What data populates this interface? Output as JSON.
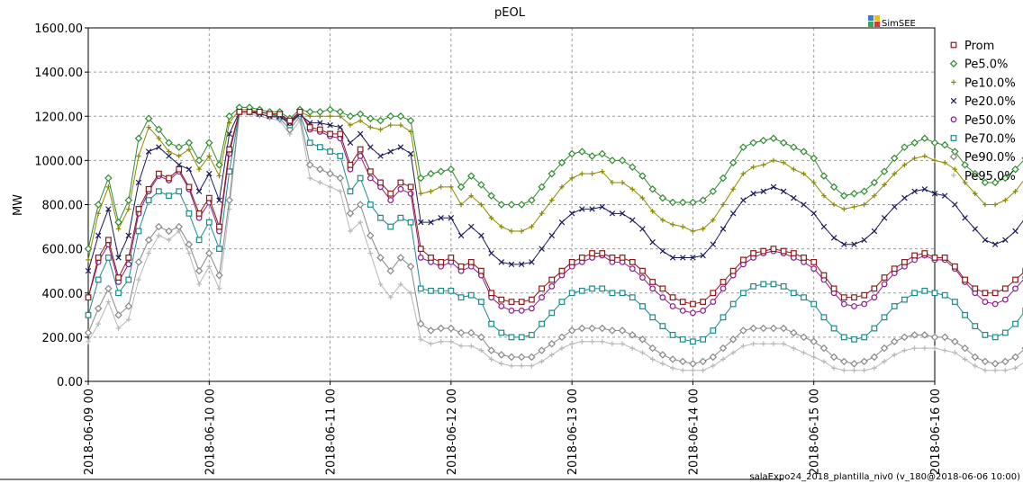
{
  "chart_data": {
    "type": "line",
    "title": "pEOL",
    "ylabel": "MW",
    "xlabel": "",
    "ylim": [
      0,
      1600
    ],
    "yticks": [
      "0.00",
      "200.00",
      "400.00",
      "600.00",
      "800.00",
      "1000.00",
      "1200.00",
      "1400.00",
      "1600.00"
    ],
    "xticks": [
      "2018-06-09 00",
      "2018-06-10 00",
      "2018-06-11 00",
      "2018-06-12 00",
      "2018-06-13 00",
      "2018-06-14 00",
      "2018-06-15 00",
      "2018-06-16 00"
    ],
    "x_start": "2018-06-09 00",
    "step_hours": 2,
    "grid": true,
    "legend_position": "right",
    "logo": "SimSEE",
    "footer": "salaExpo24_2018_plantilla_niv0 (v_180@2018-06-06 10:00)",
    "series": [
      {
        "name": "Prom",
        "color": "#8b1a1a",
        "marker": "square-open",
        "values": [
          380,
          560,
          640,
          470,
          560,
          780,
          870,
          940,
          920,
          960,
          880,
          760,
          830,
          700,
          1050,
          1220,
          1220,
          1220,
          1210,
          1210,
          1180,
          1220,
          1150,
          1140,
          1120,
          1120,
          980,
          1050,
          950,
          900,
          850,
          900,
          880,
          600,
          560,
          540,
          560,
          520,
          540,
          500,
          400,
          370,
          360,
          360,
          370,
          420,
          460,
          500,
          540,
          560,
          580,
          580,
          560,
          560,
          540,
          500,
          450,
          420,
          380,
          360,
          350,
          360,
          400,
          450,
          500,
          550,
          580,
          590,
          600,
          590,
          580,
          560,
          540,
          480,
          420,
          380,
          380,
          390,
          420,
          470,
          510,
          540,
          570,
          580,
          560,
          560,
          520,
          460,
          420,
          400,
          400,
          420,
          460,
          500,
          560,
          600
        ]
      },
      {
        "name": "Pe5.0%",
        "color": "#2e8b2e",
        "marker": "diamond-open",
        "values": [
          600,
          800,
          920,
          720,
          820,
          1100,
          1190,
          1140,
          1080,
          1060,
          1080,
          1000,
          1080,
          980,
          1200,
          1240,
          1240,
          1230,
          1220,
          1220,
          1190,
          1230,
          1220,
          1220,
          1230,
          1220,
          1200,
          1210,
          1190,
          1180,
          1200,
          1200,
          1180,
          920,
          940,
          950,
          960,
          880,
          930,
          890,
          840,
          800,
          800,
          800,
          820,
          880,
          940,
          990,
          1030,
          1040,
          1020,
          1030,
          1000,
          1000,
          970,
          930,
          870,
          830,
          810,
          810,
          810,
          820,
          860,
          920,
          990,
          1060,
          1080,
          1090,
          1100,
          1080,
          1060,
          1040,
          1010,
          930,
          880,
          840,
          850,
          860,
          900,
          950,
          1010,
          1060,
          1080,
          1100,
          1080,
          1070,
          1040,
          980,
          940,
          900,
          900,
          920,
          960,
          1010,
          1080,
          1120
        ]
      },
      {
        "name": "Pe10.0%",
        "color": "#8b8b00",
        "marker": "plus",
        "values": [
          550,
          760,
          880,
          690,
          780,
          1020,
          1150,
          1100,
          1040,
          1020,
          1050,
          960,
          1020,
          930,
          1170,
          1230,
          1230,
          1220,
          1210,
          1210,
          1180,
          1220,
          1200,
          1200,
          1200,
          1200,
          1160,
          1180,
          1150,
          1140,
          1160,
          1160,
          1130,
          850,
          860,
          880,
          880,
          800,
          840,
          800,
          740,
          700,
          680,
          680,
          700,
          760,
          820,
          880,
          920,
          940,
          940,
          950,
          900,
          900,
          870,
          830,
          770,
          730,
          710,
          700,
          680,
          690,
          730,
          800,
          870,
          940,
          970,
          980,
          1000,
          990,
          960,
          940,
          900,
          840,
          800,
          780,
          790,
          800,
          840,
          890,
          940,
          980,
          1010,
          1020,
          1000,
          990,
          960,
          900,
          850,
          800,
          800,
          820,
          860,
          920,
          990,
          1040
        ]
      },
      {
        "name": "Pe20.0%",
        "color": "#1a1a5a",
        "marker": "x",
        "values": [
          500,
          660,
          780,
          560,
          660,
          900,
          1040,
          1060,
          1020,
          980,
          960,
          860,
          940,
          820,
          1120,
          1220,
          1220,
          1210,
          1200,
          1200,
          1170,
          1210,
          1170,
          1170,
          1160,
          1150,
          1080,
          1120,
          1060,
          1020,
          1040,
          1060,
          1030,
          720,
          720,
          740,
          740,
          660,
          700,
          660,
          580,
          540,
          530,
          530,
          540,
          600,
          660,
          720,
          760,
          780,
          780,
          790,
          760,
          760,
          730,
          690,
          630,
          590,
          560,
          560,
          560,
          570,
          620,
          690,
          760,
          820,
          850,
          860,
          880,
          860,
          830,
          800,
          760,
          700,
          650,
          620,
          620,
          640,
          680,
          740,
          790,
          830,
          860,
          870,
          850,
          840,
          800,
          740,
          690,
          640,
          620,
          640,
          680,
          740,
          820,
          900
        ]
      },
      {
        "name": "Pe50.0%",
        "color": "#8b1a8b",
        "marker": "circle-open",
        "values": [
          380,
          540,
          620,
          450,
          530,
          760,
          860,
          930,
          910,
          950,
          870,
          740,
          810,
          680,
          1030,
          1220,
          1220,
          1220,
          1210,
          1210,
          1170,
          1220,
          1140,
          1130,
          1110,
          1100,
          960,
          1020,
          920,
          880,
          820,
          870,
          850,
          560,
          540,
          520,
          540,
          500,
          520,
          480,
          380,
          340,
          320,
          320,
          330,
          380,
          430,
          480,
          520,
          540,
          560,
          570,
          540,
          540,
          510,
          470,
          420,
          380,
          340,
          320,
          310,
          320,
          360,
          420,
          480,
          530,
          560,
          580,
          590,
          580,
          560,
          540,
          510,
          460,
          400,
          350,
          340,
          350,
          380,
          440,
          490,
          520,
          550,
          570,
          550,
          550,
          510,
          450,
          400,
          360,
          350,
          370,
          420,
          470,
          530,
          580
        ]
      },
      {
        "name": "Pe70.0%",
        "color": "#1a8b8b",
        "marker": "square-open",
        "values": [
          300,
          460,
          560,
          400,
          460,
          680,
          820,
          860,
          840,
          860,
          760,
          640,
          720,
          600,
          950,
          1220,
          1220,
          1220,
          1210,
          1200,
          1160,
          1210,
          1080,
          1060,
          1040,
          1020,
          860,
          920,
          800,
          740,
          700,
          740,
          720,
          420,
          410,
          410,
          410,
          380,
          390,
          360,
          260,
          220,
          200,
          200,
          210,
          260,
          310,
          360,
          400,
          410,
          420,
          420,
          400,
          400,
          380,
          340,
          290,
          250,
          210,
          190,
          180,
          190,
          230,
          290,
          350,
          400,
          430,
          440,
          440,
          430,
          400,
          380,
          350,
          290,
          240,
          200,
          190,
          200,
          240,
          290,
          340,
          370,
          400,
          410,
          400,
          390,
          360,
          300,
          250,
          210,
          200,
          220,
          260,
          320,
          380,
          430
        ]
      },
      {
        "name": "Pe90.0%",
        "color": "#888888",
        "marker": "diamond-open",
        "values": [
          220,
          330,
          420,
          300,
          340,
          540,
          640,
          700,
          680,
          700,
          620,
          500,
          580,
          480,
          820,
          1220,
          1220,
          1210,
          1200,
          1190,
          1140,
          1200,
          980,
          960,
          940,
          920,
          760,
          800,
          660,
          560,
          500,
          560,
          520,
          260,
          230,
          240,
          240,
          220,
          220,
          200,
          140,
          120,
          110,
          110,
          110,
          140,
          170,
          200,
          230,
          240,
          240,
          240,
          230,
          230,
          210,
          190,
          150,
          120,
          100,
          90,
          80,
          90,
          110,
          150,
          190,
          230,
          240,
          240,
          240,
          240,
          220,
          200,
          180,
          150,
          110,
          90,
          80,
          90,
          110,
          150,
          180,
          200,
          210,
          210,
          200,
          200,
          180,
          150,
          110,
          90,
          80,
          90,
          110,
          150,
          190,
          210
        ]
      },
      {
        "name": "Pe95.0%",
        "color": "#b8b8b8",
        "marker": "plus",
        "values": [
          180,
          260,
          360,
          240,
          280,
          460,
          580,
          660,
          640,
          680,
          580,
          440,
          520,
          420,
          780,
          1210,
          1210,
          1200,
          1190,
          1180,
          1120,
          1180,
          920,
          900,
          880,
          860,
          680,
          720,
          580,
          440,
          380,
          440,
          400,
          190,
          170,
          180,
          180,
          160,
          160,
          140,
          100,
          80,
          70,
          70,
          70,
          90,
          120,
          150,
          170,
          180,
          180,
          180,
          170,
          170,
          150,
          130,
          100,
          80,
          60,
          50,
          50,
          50,
          70,
          100,
          130,
          160,
          170,
          170,
          170,
          170,
          150,
          130,
          110,
          90,
          60,
          50,
          50,
          50,
          60,
          90,
          120,
          140,
          150,
          150,
          150,
          140,
          130,
          100,
          70,
          50,
          50,
          50,
          60,
          90,
          120,
          150
        ]
      }
    ]
  }
}
